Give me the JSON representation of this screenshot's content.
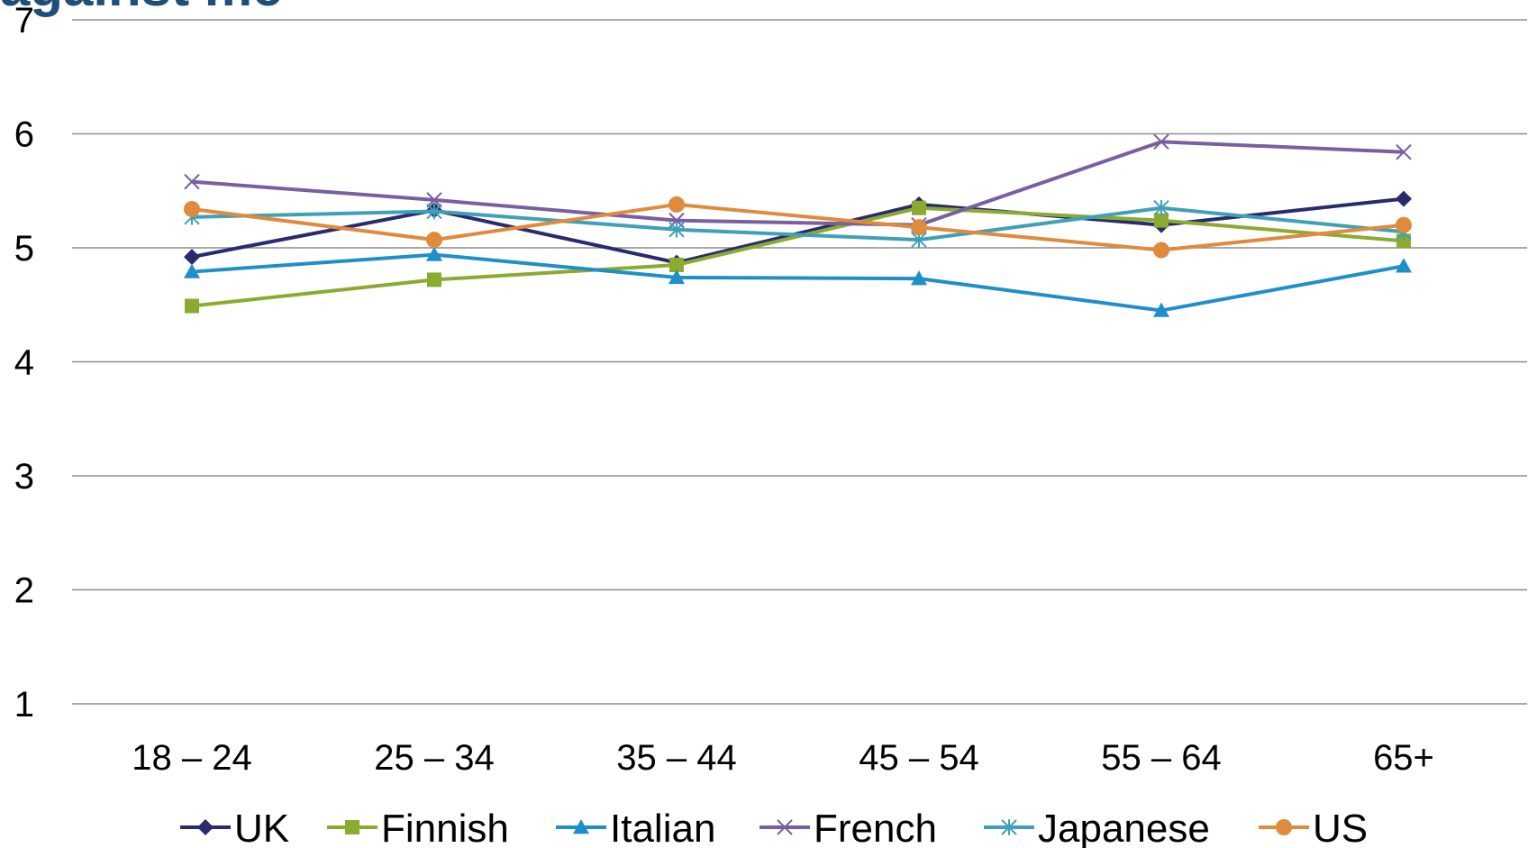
{
  "chart_data": {
    "type": "line",
    "title": "against me",
    "xlabel": "",
    "ylabel": "",
    "categories": [
      "18 – 24",
      "25 – 34",
      "35 – 44",
      "45 – 54",
      "55 – 64",
      "65+"
    ],
    "ylim": [
      1,
      7
    ],
    "yticks": [
      1,
      2,
      3,
      4,
      5,
      6,
      7
    ],
    "grid": true,
    "legend_position": "bottom",
    "series": [
      {
        "name": "UK",
        "color": "#2a2a6e",
        "marker": "diamond",
        "values": [
          4.92,
          5.33,
          4.87,
          5.38,
          5.2,
          5.43
        ]
      },
      {
        "name": "Finnish",
        "color": "#8aab30",
        "marker": "square",
        "values": [
          4.49,
          4.72,
          4.85,
          5.35,
          5.24,
          5.06
        ]
      },
      {
        "name": "Italian",
        "color": "#1f8fc9",
        "marker": "triangle",
        "values": [
          4.79,
          4.94,
          4.74,
          4.73,
          4.45,
          4.84
        ]
      },
      {
        "name": "French",
        "color": "#7a5fa0",
        "marker": "x",
        "values": [
          5.58,
          5.42,
          5.24,
          5.2,
          5.93,
          5.84
        ]
      },
      {
        "name": "Japanese",
        "color": "#3fa0b8",
        "marker": "star",
        "values": [
          5.27,
          5.32,
          5.16,
          5.07,
          5.35,
          5.14
        ]
      },
      {
        "name": "US",
        "color": "#e08a3c",
        "marker": "circle",
        "values": [
          5.34,
          5.07,
          5.38,
          5.18,
          4.98,
          5.2
        ]
      }
    ]
  }
}
